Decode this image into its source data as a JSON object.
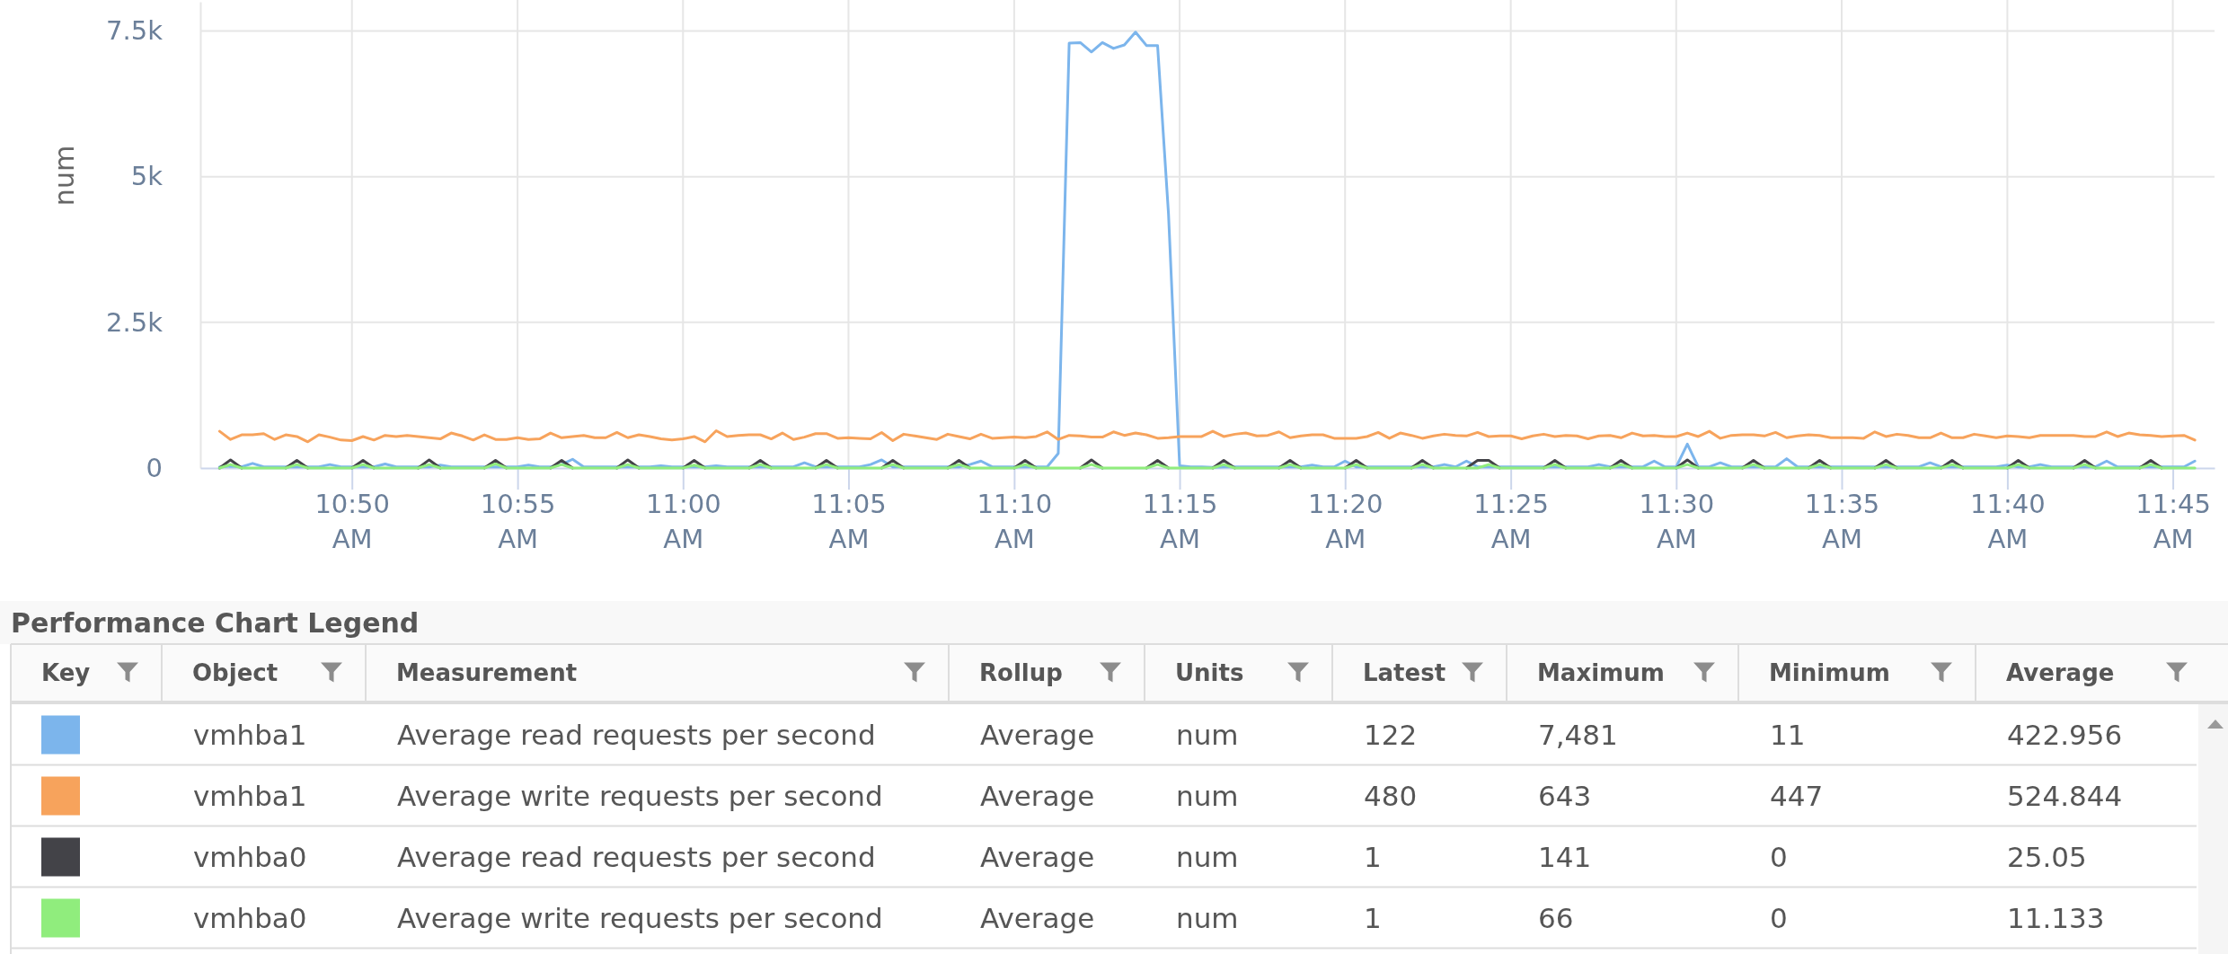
{
  "chart_data": [
    {
      "type": "line",
      "ylabel": "num",
      "x": [
        10.7667,
        10.7722,
        10.7778,
        10.7833,
        10.7889,
        10.7944,
        10.8,
        10.8056,
        10.8111,
        10.8167,
        10.8222,
        10.8278,
        10.8333,
        10.8389,
        10.8444,
        10.85,
        10.8556,
        10.8611,
        10.8667,
        10.8722,
        10.8778,
        10.8833,
        10.8889,
        10.8944,
        10.9,
        10.9056,
        10.9111,
        10.9167,
        10.9222,
        10.9278,
        10.9333,
        10.9389,
        10.9444,
        10.95,
        10.9556,
        10.9611,
        10.9667,
        10.9722,
        10.9778,
        10.9833,
        10.9889,
        10.9944,
        11,
        11.0056,
        11.0111,
        11.0167,
        11.0222,
        11.0278,
        11.0333,
        11.0389,
        11.0444,
        11.05,
        11.0556,
        11.0611,
        11.0667,
        11.0722,
        11.0778,
        11.0833,
        11.0889,
        11.0944,
        11.1,
        11.1056,
        11.1111,
        11.1167,
        11.1222,
        11.1278,
        11.1333,
        11.1389,
        11.1444,
        11.15,
        11.1556,
        11.1611,
        11.1667,
        11.1722,
        11.1778,
        11.1833,
        11.1889,
        11.1944,
        11.2,
        11.2056,
        11.2111,
        11.2167,
        11.2222,
        11.2278,
        11.2333,
        11.2389,
        11.2444,
        11.25,
        11.2556,
        11.2611,
        11.2667,
        11.2722,
        11.2778,
        11.2833,
        11.2889,
        11.2944,
        11.3,
        11.3056,
        11.3111,
        11.3167,
        11.3222,
        11.3278,
        11.3333,
        11.3389,
        11.3444,
        11.35,
        11.3556,
        11.3611,
        11.3667,
        11.3722,
        11.3778,
        11.3833,
        11.3889,
        11.3944,
        11.4,
        11.4056,
        11.4111,
        11.4167,
        11.4222,
        11.4278,
        11.4333,
        11.4389,
        11.4444,
        11.45,
        11.4556,
        11.4611,
        11.4667,
        11.4722,
        11.4778,
        11.4833,
        11.4889,
        11.4944,
        11.5,
        11.5056,
        11.5111,
        11.5167,
        11.5222,
        11.5278,
        11.5333,
        11.5389,
        11.5444,
        11.55,
        11.5556,
        11.5611,
        11.5667,
        11.5722,
        11.5778,
        11.5833,
        11.5889,
        11.5944,
        11.6,
        11.6056,
        11.6111,
        11.6167,
        11.6222,
        11.6278,
        11.6333,
        11.6389,
        11.6444,
        11.65,
        11.6556,
        11.6611,
        11.6667,
        11.6722,
        11.6778,
        11.6833,
        11.6889,
        11.6944,
        11.7,
        11.7056,
        11.7111,
        11.7167,
        11.7222,
        11.7278,
        11.7333,
        11.7389,
        11.7444,
        11.75,
        11.7556,
        11.7611
      ],
      "series": [
        {
          "color": "#7cb5ec",
          "values": [
            20,
            30,
            20,
            80,
            20,
            20,
            20,
            20,
            20,
            20,
            60,
            20,
            20,
            20,
            20,
            70,
            20,
            20,
            20,
            20,
            50,
            20,
            20,
            20,
            20,
            20,
            20,
            20,
            50,
            20,
            20,
            60,
            150,
            20,
            20,
            20,
            20,
            20,
            20,
            20,
            40,
            20,
            20,
            20,
            20,
            40,
            20,
            20,
            20,
            20,
            20,
            20,
            20,
            90,
            20,
            20,
            20,
            20,
            20,
            60,
            140,
            20,
            20,
            20,
            20,
            20,
            20,
            20,
            60,
            120,
            20,
            20,
            20,
            20,
            20,
            20,
            250,
            7290,
            7300,
            7140,
            7300,
            7200,
            7260,
            7480,
            7250,
            7250,
            4360,
            40,
            20,
            20,
            10,
            20,
            20,
            20,
            20,
            20,
            20,
            20,
            20,
            50,
            20,
            20,
            120,
            20,
            20,
            20,
            20,
            20,
            20,
            20,
            20,
            60,
            20,
            120,
            20,
            20,
            20,
            20,
            20,
            20,
            20,
            20,
            20,
            20,
            20,
            60,
            20,
            20,
            20,
            20,
            120,
            20,
            20,
            410,
            20,
            20,
            90,
            20,
            20,
            20,
            20,
            20,
            160,
            20,
            20,
            20,
            20,
            20,
            20,
            20,
            20,
            20,
            20,
            20,
            20,
            90,
            20,
            20,
            20,
            20,
            20,
            20,
            50,
            20,
            20,
            60,
            20,
            20,
            20,
            20,
            20,
            120,
            20,
            20,
            20,
            20,
            20,
            20,
            20,
            120
          ]
        },
        {
          "color": "#f7a35c",
          "values": [
            630,
            490,
            570,
            570,
            590,
            490,
            570,
            540,
            450,
            570,
            530,
            480,
            470,
            540,
            480,
            560,
            540,
            560,
            540,
            520,
            500,
            600,
            550,
            480,
            570,
            490,
            490,
            520,
            490,
            500,
            600,
            520,
            540,
            560,
            520,
            520,
            610,
            520,
            570,
            540,
            500,
            480,
            500,
            540,
            450,
            640,
            540,
            560,
            570,
            570,
            500,
            600,
            490,
            530,
            590,
            590,
            510,
            520,
            510,
            500,
            610,
            470,
            580,
            550,
            520,
            490,
            580,
            540,
            500,
            580,
            510,
            520,
            530,
            520,
            540,
            620,
            490,
            560,
            550,
            530,
            530,
            620,
            560,
            600,
            570,
            510,
            520,
            540,
            540,
            540,
            630,
            540,
            580,
            600,
            550,
            560,
            620,
            520,
            550,
            570,
            570,
            510,
            510,
            510,
            540,
            610,
            510,
            600,
            560,
            510,
            550,
            580,
            560,
            550,
            610,
            540,
            550,
            550,
            500,
            550,
            580,
            540,
            560,
            550,
            500,
            550,
            560,
            520,
            600,
            550,
            560,
            540,
            540,
            600,
            540,
            630,
            510,
            560,
            570,
            570,
            550,
            610,
            520,
            550,
            570,
            560,
            520,
            520,
            520,
            510,
            620,
            540,
            580,
            560,
            520,
            520,
            600,
            520,
            520,
            580,
            550,
            520,
            550,
            540,
            520,
            560,
            560,
            560,
            560,
            540,
            540,
            620,
            540,
            600,
            570,
            560,
            540,
            550,
            560,
            480
          ]
        },
        {
          "color": "#434348",
          "values": [
            0,
            140,
            0,
            null,
            null,
            null,
            0,
            130,
            0,
            null,
            null,
            null,
            0,
            130,
            0,
            null,
            null,
            null,
            0,
            140,
            0,
            null,
            null,
            null,
            0,
            130,
            0,
            null,
            null,
            null,
            0,
            130,
            0,
            null,
            null,
            null,
            0,
            140,
            0,
            null,
            null,
            null,
            0,
            130,
            0,
            null,
            null,
            null,
            0,
            130,
            0,
            null,
            null,
            null,
            0,
            130,
            0,
            null,
            null,
            null,
            0,
            130,
            0,
            null,
            null,
            null,
            0,
            130,
            0,
            null,
            null,
            null,
            0,
            130,
            0,
            null,
            null,
            null,
            0,
            140,
            0,
            null,
            null,
            null,
            0,
            130,
            0,
            null,
            null,
            null,
            0,
            130,
            0,
            null,
            null,
            null,
            0,
            130,
            0,
            null,
            null,
            null,
            0,
            130,
            0,
            null,
            null,
            null,
            0,
            130,
            0,
            null,
            null,
            0,
            130,
            130,
            0,
            null,
            null,
            null,
            0,
            130,
            0,
            null,
            null,
            null,
            0,
            130,
            0,
            null,
            null,
            null,
            0,
            140,
            0,
            null,
            null,
            null,
            0,
            130,
            0,
            null,
            null,
            null,
            0,
            130,
            0,
            null,
            null,
            null,
            0,
            130,
            0,
            null,
            null,
            null,
            0,
            130,
            0,
            null,
            null,
            null,
            0,
            130,
            0,
            null,
            null,
            null,
            0,
            130,
            0,
            null,
            null,
            null,
            0,
            130,
            0,
            null,
            null,
            null
          ]
        },
        {
          "color": "#90ed7d",
          "values": [
            0,
            60,
            0,
            0,
            0,
            0,
            0,
            60,
            0,
            0,
            0,
            0,
            0,
            60,
            0,
            0,
            0,
            0,
            0,
            60,
            0,
            0,
            0,
            0,
            0,
            70,
            0,
            0,
            0,
            0,
            0,
            60,
            0,
            0,
            0,
            0,
            0,
            60,
            0,
            0,
            0,
            0,
            0,
            50,
            0,
            0,
            0,
            0,
            0,
            60,
            0,
            0,
            0,
            0,
            0,
            60,
            0,
            0,
            0,
            0,
            0,
            60,
            0,
            0,
            0,
            0,
            0,
            60,
            0,
            0,
            0,
            0,
            0,
            60,
            0,
            0,
            0,
            0,
            0,
            60,
            0,
            0,
            0,
            0,
            0,
            60,
            0,
            0,
            0,
            0,
            0,
            60,
            0,
            0,
            0,
            0,
            0,
            60,
            0,
            0,
            0,
            0,
            0,
            60,
            0,
            0,
            0,
            0,
            0,
            60,
            0,
            0,
            0,
            0,
            0,
            60,
            0,
            0,
            0,
            0,
            0,
            60,
            0,
            0,
            0,
            0,
            0,
            60,
            0,
            0,
            0,
            0,
            0,
            60,
            0,
            0,
            0,
            0,
            0,
            60,
            0,
            0,
            0,
            0,
            0,
            60,
            0,
            0,
            0,
            0,
            0,
            60,
            0,
            0,
            0,
            0,
            0,
            60,
            0,
            0,
            0,
            0,
            0,
            60,
            0,
            0,
            0,
            0,
            0,
            60,
            0,
            0,
            0,
            0,
            0,
            60,
            0,
            0,
            0,
            0
          ]
        }
      ],
      "xlim": [
        10.757,
        11.771
      ],
      "xticks": [
        {
          "value": 10.8333,
          "label": "10:50 AM"
        },
        {
          "value": 10.9167,
          "label": "10:55 AM"
        },
        {
          "value": 11,
          "label": "11:00 AM"
        },
        {
          "value": 11.0833,
          "label": "11:05 AM"
        },
        {
          "value": 11.1667,
          "label": "11:10 AM"
        },
        {
          "value": 11.25,
          "label": "11:15 AM"
        },
        {
          "value": 11.3333,
          "label": "11:20 AM"
        },
        {
          "value": 11.4167,
          "label": "11:25 AM"
        },
        {
          "value": 11.5,
          "label": "11:30 AM"
        },
        {
          "value": 11.5833,
          "label": "11:35 AM"
        },
        {
          "value": 11.6667,
          "label": "11:40 AM"
        },
        {
          "value": 11.75,
          "label": "11:45 AM"
        }
      ],
      "ylim": [
        0,
        8000
      ],
      "yticks": [
        0,
        {
          "value": 2500,
          "label": "2.5k"
        },
        {
          "value": 5000,
          "label": "5k"
        },
        {
          "value": 7500,
          "label": "7.5k"
        }
      ],
      "grid": true,
      "line_style": "solid"
    },
    {
      "type": "other",
      "title": "Performance Chart Legend",
      "categories": [
        "Key",
        "Object",
        "Measurement",
        "Rollup",
        "Units",
        "Latest",
        "Maximum",
        "Minimum",
        "Average"
      ],
      "cell_labels": [
        [
          null,
          "vmhba1",
          "Average read requests per second",
          "Average",
          "num",
          "122",
          "7,481",
          "11",
          "422.956"
        ],
        [
          null,
          "vmhba1",
          "Average write requests per second",
          "Average",
          "num",
          "480",
          "643",
          "447",
          "524.844"
        ],
        [
          null,
          "vmhba0",
          "Average read requests per second",
          "Average",
          "num",
          "1",
          "141",
          "0",
          "25.05"
        ],
        [
          null,
          "vmhba0",
          "Average write requests per second",
          "Average",
          "num",
          "1",
          "66",
          "0",
          "11.133"
        ]
      ],
      "colors": [
        "#7cb5ec",
        "#f7a35c",
        "#434348",
        "#90ed7d"
      ]
    }
  ]
}
